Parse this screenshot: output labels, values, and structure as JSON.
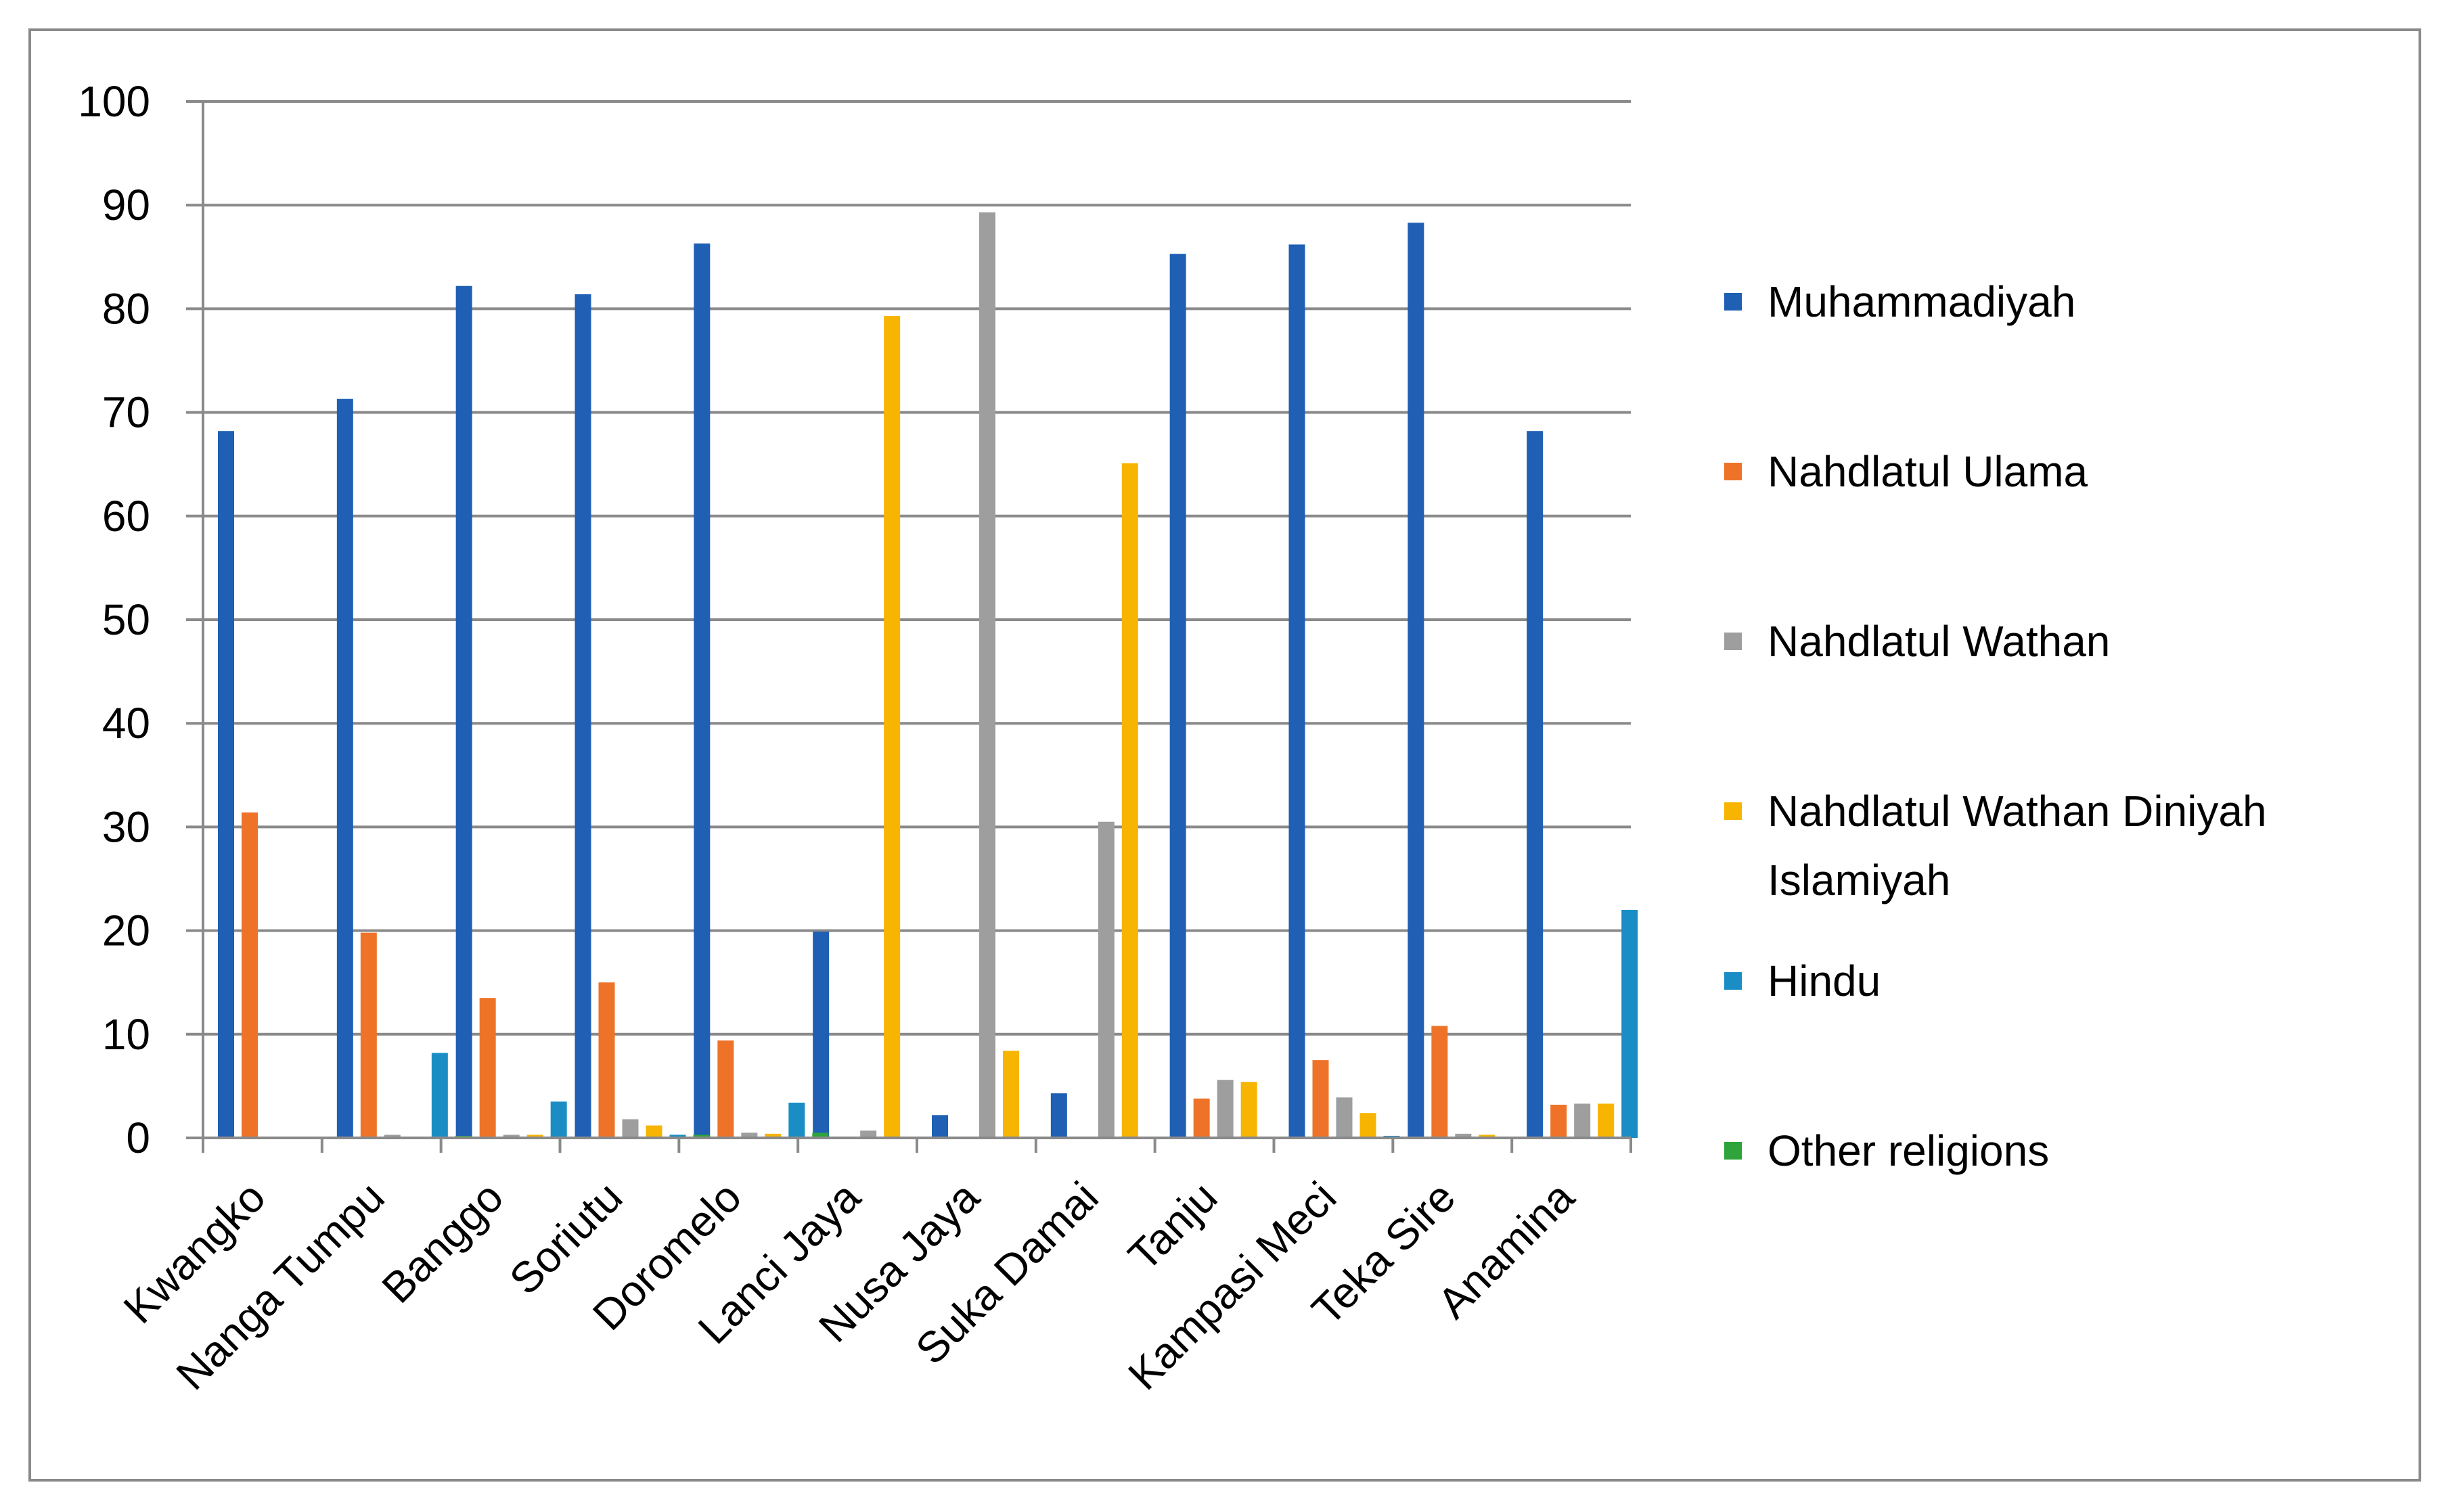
{
  "chart_data": {
    "type": "bar",
    "categories": [
      "Kwangko",
      "Nanga Tumpu",
      "Banggo",
      "Soriutu",
      "Doromelo",
      "Lanci Jaya",
      "Nusa Jaya",
      "Suka Damai",
      "Tanju",
      "Kampasi Meci",
      "Teka Sire",
      "Anamina"
    ],
    "series": [
      {
        "name": "Muhammadiyah",
        "color": "#1f5fb4",
        "values": [
          68.2,
          71.3,
          82.2,
          81.4,
          86.3,
          19.9,
          2.2,
          4.3,
          85.3,
          86.2,
          88.3,
          68.2
        ]
      },
      {
        "name": "Nahdlatul Ulama",
        "color": "#ee7328",
        "values": [
          31.4,
          19.8,
          13.5,
          15.0,
          9.4,
          0,
          0,
          0,
          3.8,
          7.5,
          10.8,
          3.2
        ]
      },
      {
        "name": "Nahdlatul Wathan",
        "color": "#9e9e9e",
        "values": [
          0,
          0.3,
          0.3,
          1.8,
          0.5,
          0.7,
          89.3,
          30.5,
          5.6,
          3.9,
          0.4,
          3.3
        ]
      },
      {
        "name": "Nahdlatul Wathan Diniyah Islamiyah",
        "color": "#f7b400",
        "values": [
          0,
          0,
          0.3,
          1.2,
          0.4,
          79.3,
          8.4,
          65.1,
          5.4,
          2.4,
          0.3,
          3.3
        ]
      },
      {
        "name": "Hindu",
        "color": "#1a8ec4",
        "values": [
          0,
          8.2,
          3.5,
          0.3,
          3.4,
          0,
          0,
          0,
          0,
          0.2,
          0,
          22.0
        ]
      },
      {
        "name": "Other religions",
        "color": "#2ea43a",
        "values": [
          0,
          0.2,
          0,
          0.3,
          0.5,
          0,
          0,
          0,
          0,
          0,
          0,
          0
        ]
      }
    ],
    "ylim": [
      0,
      100
    ],
    "yticks": [
      "0",
      "10",
      "20",
      "30",
      "40",
      "50",
      "60",
      "70",
      "80",
      "90",
      "100"
    ],
    "grid": true,
    "legend_position": "right",
    "gridline_color": "#8a8a8a",
    "axis_color": "#8a8a8a"
  }
}
